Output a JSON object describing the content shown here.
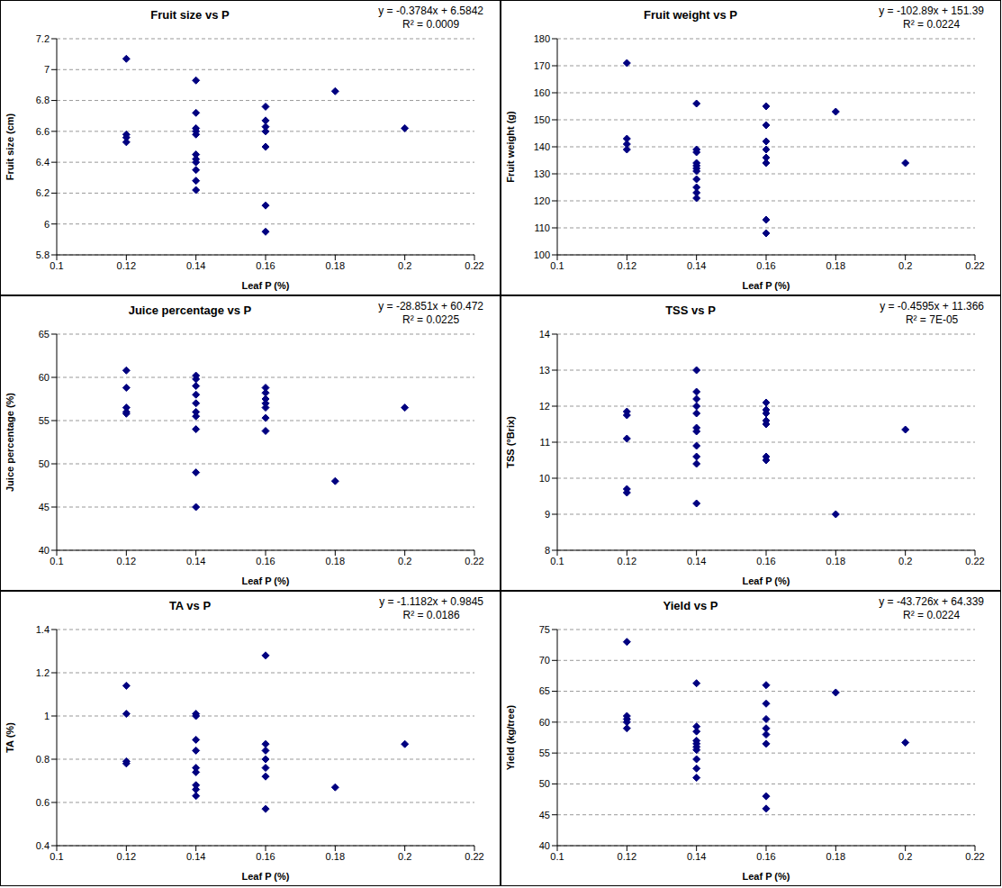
{
  "chart_data": [
    {
      "type": "scatter",
      "title": "Fruit size vs P",
      "x_label": "Leaf P (%)",
      "y_label": "Fruit size (cm)",
      "annotations": [
        "y = -0.3784x + 6.5842",
        "R² = 0.0009"
      ],
      "x": [
        0.12,
        0.12,
        0.12,
        0.12,
        0.14,
        0.14,
        0.14,
        0.14,
        0.14,
        0.14,
        0.14,
        0.14,
        0.14,
        0.14,
        0.14,
        0.16,
        0.16,
        0.16,
        0.16,
        0.16,
        0.16,
        0.16,
        0.18,
        0.2
      ],
      "values": [
        7.07,
        6.58,
        6.56,
        6.53,
        6.93,
        6.72,
        6.62,
        6.6,
        6.58,
        6.45,
        6.42,
        6.4,
        6.35,
        6.28,
        6.22,
        6.76,
        6.67,
        6.63,
        6.6,
        6.5,
        6.12,
        5.95,
        6.86,
        6.62
      ],
      "xlim": [
        0.1,
        0.22
      ],
      "xticks": [
        0.1,
        0.12,
        0.14,
        0.16,
        0.18,
        0.2,
        0.22
      ],
      "ylim": [
        5.8,
        7.2
      ],
      "yticks": [
        5.8,
        6,
        6.2,
        6.4,
        6.6,
        6.8,
        7,
        7.2
      ],
      "grid": true,
      "marker": "diamond",
      "color": "#000080"
    },
    {
      "type": "scatter",
      "title": "Fruit weight vs P",
      "x_label": "Leaf P (%)",
      "y_label": "Fruit weight (g)",
      "annotations": [
        "y = -102.89x + 151.39",
        "R² = 0.0224"
      ],
      "x": [
        0.12,
        0.12,
        0.12,
        0.12,
        0.14,
        0.14,
        0.14,
        0.14,
        0.14,
        0.14,
        0.14,
        0.14,
        0.14,
        0.14,
        0.14,
        0.16,
        0.16,
        0.16,
        0.16,
        0.16,
        0.16,
        0.16,
        0.16,
        0.18,
        0.2
      ],
      "values": [
        171,
        143,
        141,
        139,
        156,
        139,
        138,
        134,
        133,
        132,
        131,
        128,
        125,
        123,
        121,
        155,
        148,
        142,
        139,
        136,
        134,
        113,
        108,
        153,
        134
      ],
      "xlim": [
        0.1,
        0.22
      ],
      "xticks": [
        0.1,
        0.12,
        0.14,
        0.16,
        0.18,
        0.2,
        0.22
      ],
      "ylim": [
        100,
        180
      ],
      "yticks": [
        100,
        110,
        120,
        130,
        140,
        150,
        160,
        170,
        180
      ],
      "grid": true,
      "marker": "diamond",
      "color": "#000080"
    },
    {
      "type": "scatter",
      "title": "Juice percentage vs P",
      "x_label": "Leaf P (%)",
      "y_label": "Juice percentage (%)",
      "annotations": [
        "y = -28.851x + 60.472",
        "R² = 0.0225"
      ],
      "x": [
        0.12,
        0.12,
        0.12,
        0.12,
        0.12,
        0.14,
        0.14,
        0.14,
        0.14,
        0.14,
        0.14,
        0.14,
        0.14,
        0.14,
        0.14,
        0.16,
        0.16,
        0.16,
        0.16,
        0.16,
        0.16,
        0.16,
        0.18,
        0.2
      ],
      "values": [
        60.8,
        58.8,
        56.5,
        56,
        55.8,
        60.2,
        59.8,
        59,
        58,
        57,
        56,
        55.5,
        54,
        49,
        45,
        58.8,
        58.2,
        57.5,
        57,
        56.5,
        55.3,
        53.8,
        48,
        56.5
      ],
      "xlim": [
        0.1,
        0.22
      ],
      "xticks": [
        0.1,
        0.12,
        0.14,
        0.16,
        0.18,
        0.2,
        0.22
      ],
      "ylim": [
        40,
        65
      ],
      "yticks": [
        40,
        45,
        50,
        55,
        60,
        65
      ],
      "grid": true,
      "marker": "diamond",
      "color": "#000080"
    },
    {
      "type": "scatter",
      "title": "TSS vs P",
      "x_label": "Leaf P (%)",
      "y_label": "TSS (°Brix)",
      "annotations": [
        "y = -0.4595x + 11.366",
        "R² = 7E-05"
      ],
      "x": [
        0.12,
        0.12,
        0.12,
        0.12,
        0.12,
        0.14,
        0.14,
        0.14,
        0.14,
        0.14,
        0.14,
        0.14,
        0.14,
        0.14,
        0.14,
        0.14,
        0.16,
        0.16,
        0.16,
        0.16,
        0.16,
        0.16,
        0.16,
        0.18,
        0.2
      ],
      "values": [
        11.85,
        11.75,
        11.1,
        9.7,
        9.6,
        13,
        12.4,
        12.2,
        12,
        11.8,
        11.4,
        11.3,
        10.9,
        10.6,
        10.4,
        9.3,
        12.1,
        11.9,
        11.8,
        11.6,
        11.5,
        10.6,
        10.5,
        9,
        11.35
      ],
      "xlim": [
        0.1,
        0.22
      ],
      "xticks": [
        0.1,
        0.12,
        0.14,
        0.16,
        0.18,
        0.2,
        0.22
      ],
      "ylim": [
        8,
        14
      ],
      "yticks": [
        8,
        9,
        10,
        11,
        12,
        13,
        14
      ],
      "grid": true,
      "marker": "diamond",
      "color": "#000080"
    },
    {
      "type": "scatter",
      "title": "TA vs P",
      "x_label": "Leaf P (%)",
      "y_label": "TA (%)",
      "annotations": [
        "y = -1.1182x + 0.9845",
        "R² = 0.0186"
      ],
      "x": [
        0.12,
        0.12,
        0.12,
        0.12,
        0.14,
        0.14,
        0.14,
        0.14,
        0.14,
        0.14,
        0.14,
        0.14,
        0.14,
        0.16,
        0.16,
        0.16,
        0.16,
        0.16,
        0.16,
        0.16,
        0.18,
        0.2
      ],
      "values": [
        1.14,
        1.01,
        0.79,
        0.78,
        1.01,
        1,
        0.89,
        0.84,
        0.76,
        0.74,
        0.68,
        0.66,
        0.63,
        1.28,
        0.87,
        0.84,
        0.8,
        0.76,
        0.72,
        0.57,
        0.67,
        0.87
      ],
      "xlim": [
        0.1,
        0.22
      ],
      "xticks": [
        0.1,
        0.12,
        0.14,
        0.16,
        0.18,
        0.2,
        0.22
      ],
      "ylim": [
        0.4,
        1.4
      ],
      "yticks": [
        0.4,
        0.6,
        0.8,
        1,
        1.2,
        1.4
      ],
      "grid": true,
      "marker": "diamond",
      "color": "#000080"
    },
    {
      "type": "scatter",
      "title": "Yield vs P",
      "x_label": "Leaf P (%)",
      "y_label": "Yield (kg/tree)",
      "annotations": [
        "y = -43.726x + 64.339",
        "R² = 0.0224"
      ],
      "x": [
        0.12,
        0.12,
        0.12,
        0.12,
        0.12,
        0.14,
        0.14,
        0.14,
        0.14,
        0.14,
        0.14,
        0.14,
        0.14,
        0.14,
        0.14,
        0.16,
        0.16,
        0.16,
        0.16,
        0.16,
        0.16,
        0.16,
        0.16,
        0.18,
        0.2
      ],
      "values": [
        73,
        61,
        60.5,
        60,
        59,
        66.3,
        59.3,
        58.5,
        57,
        56.5,
        56,
        55.5,
        54,
        52.5,
        51,
        66,
        63,
        60.5,
        59,
        58,
        56.5,
        48,
        46,
        64.8,
        56.7
      ],
      "xlim": [
        0.1,
        0.22
      ],
      "xticks": [
        0.1,
        0.12,
        0.14,
        0.16,
        0.18,
        0.2,
        0.22
      ],
      "ylim": [
        40,
        75
      ],
      "yticks": [
        40,
        45,
        50,
        55,
        60,
        65,
        70,
        75
      ],
      "grid": true,
      "marker": "diamond",
      "color": "#000080"
    }
  ]
}
